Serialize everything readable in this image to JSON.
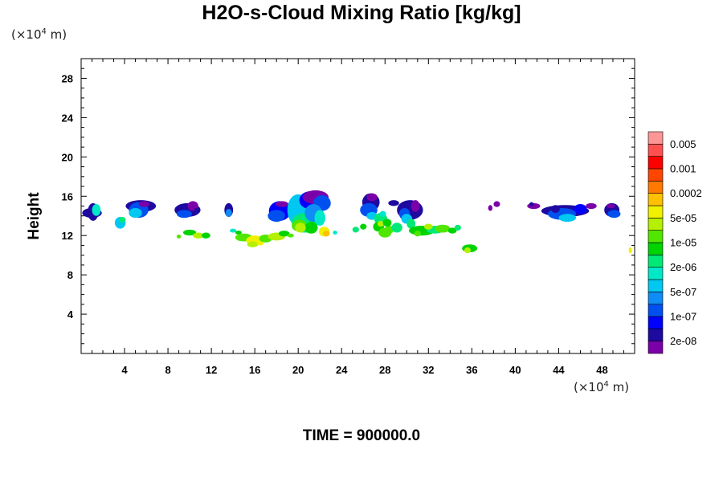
{
  "chart_data": {
    "type": "heatmap",
    "title": "H2O-s-Cloud Mixing Ratio [kg/kg]",
    "ylabel": "Height",
    "xunit": "(×10",
    "xunit_exp": "4",
    "xunit_tail": " m)",
    "yunit": "(×10",
    "yunit_exp": "4",
    "yunit_tail": " m)",
    "footer": "TIME = 900000.0",
    "xlim": [
      0,
      51
    ],
    "ylim": [
      0,
      30
    ],
    "x_ticks": [
      4,
      8,
      12,
      16,
      20,
      24,
      28,
      32,
      36,
      40,
      44,
      48
    ],
    "y_ticks": [
      4,
      8,
      12,
      16,
      20,
      24,
      28
    ],
    "colorbar": {
      "colors": [
        "#7a00a8",
        "#1e0aa0",
        "#0000ff",
        "#0050f0",
        "#0f8cf5",
        "#00c8f0",
        "#00e8c8",
        "#00e878",
        "#00d400",
        "#50e600",
        "#b4f000",
        "#f0f000",
        "#ffc000",
        "#ff7800",
        "#ff4600",
        "#ff0000",
        "#ff5050",
        "#ff9696"
      ],
      "labels": [
        "2e-08",
        "1e-07",
        "5e-07",
        "2e-06",
        "1e-05",
        "5e-05",
        "0.0002",
        "0.001",
        "0.005"
      ]
    },
    "cells": [
      [
        1.1,
        14.4,
        0.5,
        0.9,
        1
      ],
      [
        1.0,
        14.3,
        0.9,
        0.5,
        1
      ],
      [
        1.4,
        14.6,
        0.4,
        0.6,
        6
      ],
      [
        3.6,
        13.3,
        0.5,
        0.6,
        5
      ],
      [
        3.8,
        13.6,
        0.3,
        0.3,
        7
      ],
      [
        5.5,
        15.0,
        1.4,
        0.6,
        1
      ],
      [
        5.3,
        14.6,
        0.9,
        0.8,
        3
      ],
      [
        5.0,
        14.3,
        0.6,
        0.5,
        5
      ],
      [
        5.8,
        15.2,
        0.5,
        0.3,
        0
      ],
      [
        9.8,
        14.6,
        1.2,
        0.7,
        1
      ],
      [
        9.5,
        14.2,
        0.7,
        0.4,
        3
      ],
      [
        10.3,
        15.0,
        0.5,
        0.5,
        0
      ],
      [
        10.6,
        14.5,
        0.2,
        0.3,
        1
      ],
      [
        10.0,
        12.3,
        0.6,
        0.3,
        8
      ],
      [
        10.8,
        12.0,
        0.5,
        0.3,
        10
      ],
      [
        11.5,
        12.0,
        0.4,
        0.3,
        8
      ],
      [
        9.0,
        11.9,
        0.2,
        0.2,
        9
      ],
      [
        13.6,
        14.6,
        0.4,
        0.7,
        1
      ],
      [
        13.6,
        14.3,
        0.3,
        0.4,
        4
      ],
      [
        14.0,
        12.5,
        0.3,
        0.2,
        6
      ],
      [
        14.5,
        12.3,
        0.3,
        0.2,
        8
      ],
      [
        15.0,
        11.8,
        0.8,
        0.4,
        9
      ],
      [
        16.0,
        11.5,
        0.8,
        0.5,
        11
      ],
      [
        15.8,
        11.1,
        0.5,
        0.3,
        10
      ],
      [
        17.0,
        11.7,
        0.6,
        0.4,
        9
      ],
      [
        18.0,
        11.9,
        0.8,
        0.4,
        10
      ],
      [
        18.7,
        12.2,
        0.5,
        0.3,
        8
      ],
      [
        16.5,
        11.2,
        0.3,
        0.2,
        11
      ],
      [
        19.3,
        12.0,
        0.3,
        0.2,
        9
      ],
      [
        18.3,
        14.5,
        1.0,
        1.0,
        2
      ],
      [
        18.0,
        14.0,
        0.8,
        0.6,
        3
      ],
      [
        18.5,
        15.2,
        0.6,
        0.3,
        0
      ],
      [
        20.0,
        14.6,
        1.0,
        1.6,
        5
      ],
      [
        20.6,
        13.3,
        1.2,
        1.0,
        7
      ],
      [
        20.1,
        13.0,
        0.7,
        0.6,
        9
      ],
      [
        21.1,
        15.6,
        1.0,
        0.9,
        2
      ],
      [
        21.6,
        15.9,
        1.2,
        0.7,
        0
      ],
      [
        22.2,
        15.3,
        0.8,
        0.8,
        3
      ],
      [
        21.4,
        14.3,
        0.8,
        0.9,
        4
      ],
      [
        22.0,
        13.8,
        0.5,
        0.8,
        6
      ],
      [
        21.2,
        12.8,
        0.6,
        0.6,
        8
      ],
      [
        22.4,
        12.4,
        0.5,
        0.5,
        11
      ],
      [
        22.6,
        12.2,
        0.3,
        0.3,
        12
      ],
      [
        20.2,
        12.8,
        0.5,
        0.5,
        10
      ],
      [
        23.4,
        12.3,
        0.2,
        0.2,
        6
      ],
      [
        25.3,
        12.6,
        0.3,
        0.3,
        7
      ],
      [
        26.7,
        15.4,
        0.8,
        0.9,
        1
      ],
      [
        26.5,
        14.6,
        0.8,
        0.7,
        3
      ],
      [
        26.8,
        14.0,
        0.5,
        0.4,
        5
      ],
      [
        26.8,
        15.9,
        0.5,
        0.4,
        0
      ],
      [
        27.6,
        13.7,
        0.6,
        0.6,
        7
      ],
      [
        27.4,
        12.9,
        0.5,
        0.5,
        8
      ],
      [
        28.0,
        12.3,
        0.6,
        0.5,
        9
      ],
      [
        27.6,
        13.2,
        0.3,
        0.3,
        10
      ],
      [
        26.0,
        12.9,
        0.3,
        0.3,
        8
      ],
      [
        28.4,
        12.6,
        0.4,
        0.4,
        9
      ],
      [
        28.2,
        13.3,
        0.4,
        0.4,
        8
      ],
      [
        27.8,
        14.2,
        0.3,
        0.3,
        6
      ],
      [
        28.8,
        15.3,
        0.5,
        0.3,
        1
      ],
      [
        29.1,
        12.8,
        0.5,
        0.5,
        7
      ],
      [
        30.3,
        14.6,
        1.2,
        1.0,
        1
      ],
      [
        29.8,
        14.2,
        0.5,
        0.6,
        3
      ],
      [
        30.8,
        15.0,
        0.4,
        0.6,
        0
      ],
      [
        30.0,
        13.7,
        0.5,
        0.5,
        5
      ],
      [
        30.4,
        13.2,
        0.4,
        0.5,
        7
      ],
      [
        31.4,
        12.5,
        1.2,
        0.5,
        8
      ],
      [
        32.6,
        12.6,
        0.8,
        0.4,
        7
      ],
      [
        33.3,
        12.7,
        0.7,
        0.4,
        9
      ],
      [
        32.0,
        12.9,
        0.4,
        0.3,
        10
      ],
      [
        34.2,
        12.5,
        0.4,
        0.3,
        8
      ],
      [
        34.7,
        12.8,
        0.3,
        0.3,
        7
      ],
      [
        31.0,
        12.2,
        0.3,
        0.3,
        9
      ],
      [
        35.8,
        10.7,
        0.7,
        0.4,
        8
      ],
      [
        35.6,
        10.5,
        0.3,
        0.3,
        10
      ],
      [
        38.3,
        15.2,
        0.3,
        0.3,
        0
      ],
      [
        37.7,
        14.8,
        0.2,
        0.3,
        0
      ],
      [
        41.7,
        15.0,
        0.6,
        0.3,
        0
      ],
      [
        41.5,
        15.2,
        0.2,
        0.2,
        1
      ],
      [
        44.6,
        14.5,
        2.2,
        0.6,
        1
      ],
      [
        44.3,
        14.2,
        1.3,
        0.6,
        3
      ],
      [
        44.8,
        13.8,
        0.8,
        0.4,
        5
      ],
      [
        46.0,
        14.7,
        0.6,
        0.5,
        2
      ],
      [
        47.0,
        15.0,
        0.5,
        0.3,
        0
      ],
      [
        43.7,
        14.7,
        0.4,
        0.4,
        1
      ],
      [
        48.9,
        14.6,
        0.7,
        0.7,
        1
      ],
      [
        49.1,
        14.2,
        0.6,
        0.4,
        3
      ],
      [
        48.8,
        15.0,
        0.4,
        0.2,
        0
      ],
      [
        50.6,
        10.5,
        0.15,
        0.3,
        11
      ]
    ]
  }
}
